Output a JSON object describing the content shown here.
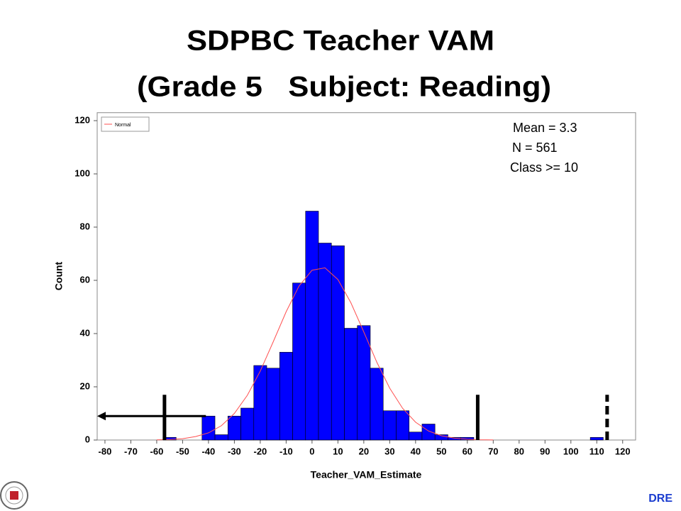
{
  "chart_data": {
    "type": "histogram",
    "title": [
      "SDPBC Teacher VAM",
      "(Grade 5   Subject: Reading)"
    ],
    "x_label": "Teacher_VAM_Estimate",
    "y_label": "Count",
    "annotations": [
      "Mean = 3.3",
      "N = 561",
      "Class >= 10"
    ],
    "footer": "DRE",
    "bins": [
      -57.5,
      -52.5,
      -47.5,
      -42.5,
      -37.5,
      -32.5,
      -27.5,
      -22.5,
      -17.5,
      -12.5,
      -7.5,
      -2.5,
      2.5,
      7.5,
      12.5,
      17.5,
      22.5,
      27.5,
      32.5,
      37.5,
      42.5,
      47.5,
      52.5,
      57.5,
      62.5,
      67.5,
      72.5,
      77.5,
      82.5,
      87.5,
      92.5,
      97.5,
      102.5,
      107.5,
      112.5
    ],
    "values": [
      1,
      0,
      0,
      9,
      2,
      9,
      12,
      28,
      27,
      33,
      59,
      86,
      74,
      73,
      42,
      43,
      27,
      11,
      11,
      3,
      6,
      2,
      1,
      1,
      0,
      0,
      0,
      0,
      0,
      0,
      0,
      0,
      0,
      1
    ],
    "color": "#0000ff",
    "curve": {
      "name": "Normal",
      "color": "#ff5050",
      "x": [
        -60,
        -55,
        -50,
        -45,
        -40,
        -35,
        -30,
        -25,
        -20,
        -15,
        -10,
        -5,
        0,
        5,
        10,
        15,
        20,
        25,
        30,
        35,
        40,
        45,
        50,
        55,
        60,
        65,
        70
      ],
      "values": [
        0.07,
        0.2,
        0.5,
        1.3,
        2.7,
        5.4,
        10.0,
        16.8,
        25.9,
        36.9,
        48.2,
        57.9,
        63.8,
        64.7,
        60.3,
        51.6,
        40.6,
        29.3,
        19.5,
        11.9,
        6.7,
        3.4,
        1.6,
        0.7,
        0.3,
        0.1,
        0.04
      ]
    },
    "reference_lines": [
      {
        "x": -57,
        "ymax": 17,
        "dashed": false
      },
      {
        "x": 64,
        "ymax": 17,
        "dashed": false
      },
      {
        "x": 114,
        "ymax": 17,
        "dashed": true
      }
    ],
    "arrow": {
      "x": [
        -41,
        -83
      ],
      "y": 9
    },
    "xlim": [
      -83,
      125
    ],
    "ylim": [
      0,
      123
    ],
    "xticks": [
      -80,
      -70,
      -60,
      -50,
      -40,
      -30,
      -20,
      -10,
      0,
      10,
      20,
      30,
      40,
      50,
      60,
      70,
      80,
      90,
      100,
      110,
      120
    ],
    "yticks": [
      0,
      20,
      40,
      60,
      80,
      100,
      120
    ]
  }
}
